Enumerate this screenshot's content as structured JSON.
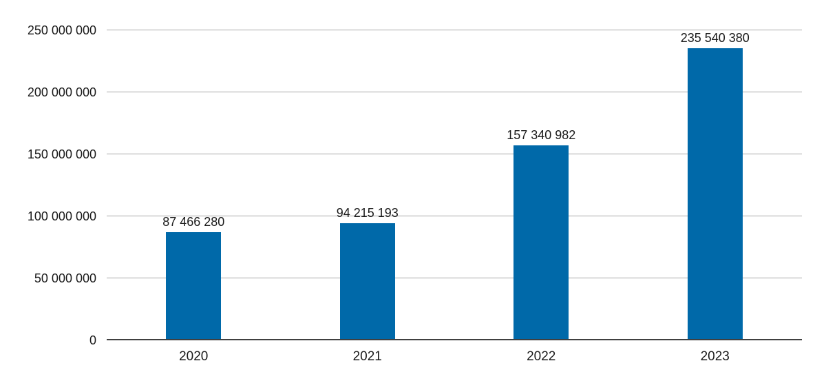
{
  "chart_data": {
    "type": "bar",
    "title": "",
    "xlabel": "",
    "ylabel": "",
    "categories": [
      "2020",
      "2021",
      "2022",
      "2023"
    ],
    "values": [
      87466280,
      94215193,
      157340982,
      235540380
    ],
    "value_labels": [
      "87 466 280",
      "94 215 193",
      "157 340 982",
      "235 540 380"
    ],
    "y_ticks": [
      {
        "value": 0,
        "label": "0"
      },
      {
        "value": 50000000,
        "label": "50 000 000"
      },
      {
        "value": 100000000,
        "label": "100 000 000"
      },
      {
        "value": 150000000,
        "label": "150 000 000"
      },
      {
        "value": 200000000,
        "label": "200 000 000"
      },
      {
        "value": 250000000,
        "label": "250 000 000"
      }
    ],
    "ylim": [
      0,
      250000000
    ],
    "grid": "horizontal",
    "legend": "none",
    "colors": {
      "bar": "#0069A9",
      "gridline": "#a6a6a6",
      "axis_line": "#404040",
      "text": "#1a1a1a",
      "background": "#ffffff"
    }
  }
}
